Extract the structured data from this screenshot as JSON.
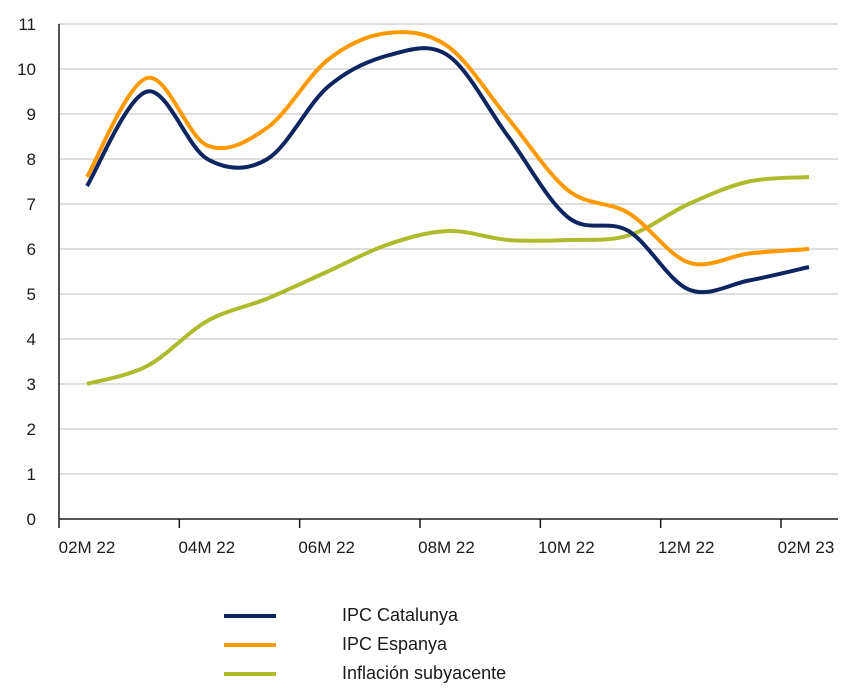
{
  "chart_data": {
    "type": "line",
    "title": "",
    "xlabel": "",
    "ylabel": "",
    "ylim": [
      0,
      11
    ],
    "yticks": [
      0,
      1,
      2,
      3,
      4,
      5,
      6,
      7,
      8,
      9,
      10,
      11
    ],
    "grid": true,
    "x_tick_labels": [
      "02M 22",
      "04M 22",
      "06M 22",
      "08M 22",
      "10M 22",
      "12M 22",
      "02M 23"
    ],
    "categories": [
      "02M 22",
      "03M 22",
      "04M 22",
      "05M 22",
      "06M 22",
      "07M 22",
      "08M 22",
      "09M 22",
      "10M 22",
      "11M 22",
      "12M 22",
      "01M 23",
      "02M 23"
    ],
    "legend_position": "bottom",
    "series": [
      {
        "name": "IPC Catalunya",
        "color": "#0d2561",
        "values": [
          7.4,
          9.5,
          8.0,
          8.0,
          9.6,
          10.3,
          10.3,
          8.5,
          6.7,
          6.4,
          5.1,
          5.3,
          5.6
        ]
      },
      {
        "name": "IPC Espanya",
        "color": "#ff9900",
        "values": [
          7.6,
          9.8,
          8.3,
          8.7,
          10.2,
          10.8,
          10.5,
          8.9,
          7.3,
          6.8,
          5.7,
          5.9,
          6.0
        ]
      },
      {
        "name": "Inflación subyacente",
        "color": "#aebb2c",
        "values": [
          3.0,
          3.4,
          4.4,
          4.9,
          5.5,
          6.1,
          6.4,
          6.2,
          6.2,
          6.3,
          7.0,
          7.5,
          7.6
        ]
      }
    ]
  }
}
